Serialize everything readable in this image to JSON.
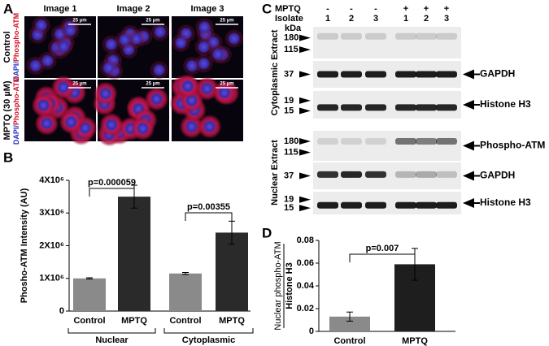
{
  "panel_a": {
    "label": "A",
    "columns": [
      "Image 1",
      "Image 2",
      "Image 3"
    ],
    "scale_bar": "25 µm",
    "rows": [
      {
        "name": "Control",
        "stain": [
          "DAPI/",
          "Phospho-ATM"
        ]
      },
      {
        "name": "MPTQ (30 µM)",
        "stain": [
          "DAPI/",
          "Phospho-ATM"
        ]
      }
    ]
  },
  "panel_c": {
    "label": "C",
    "row_headers": [
      "MPTQ",
      "Isolate"
    ],
    "mptq": [
      "-",
      "-",
      "-",
      "+",
      "+",
      "+"
    ],
    "isolate": [
      "1",
      "2",
      "3",
      "1",
      "2",
      "3"
    ],
    "unit": "kDa",
    "sections": [
      {
        "name": "Cytoplasmic Extract",
        "blots": [
          {
            "markers": [
              "180",
              "115"
            ]
          },
          {
            "markers": [
              "37"
            ],
            "target": "GAPDH"
          },
          {
            "markers": [
              "19",
              "15"
            ],
            "target": "Histone H3"
          }
        ]
      },
      {
        "name": "Nuclear Extract",
        "blots": [
          {
            "markers": [
              "180",
              "115"
            ],
            "target": "Phospho-ATM"
          },
          {
            "markers": [
              "37"
            ],
            "target": "GAPDH"
          },
          {
            "markers": [
              "19",
              "15"
            ],
            "target": "Histone H3"
          }
        ]
      }
    ]
  },
  "chart_data": [
    {
      "type": "bar",
      "label": "B",
      "ylabel": "Phosho-ATM Intensity (AU)",
      "categories": [
        "Control",
        "MPTQ",
        "Control",
        "MPTQ"
      ],
      "groups": [
        "Nuclear",
        "Cytoplasmic"
      ],
      "values": [
        1000000,
        3500000,
        1150000,
        2400000
      ],
      "errors": [
        20000,
        350000,
        30000,
        350000
      ],
      "colors": [
        "#8a8a8a",
        "#2a2a2a",
        "#8a8a8a",
        "#2a2a2a"
      ],
      "ylim": [
        0,
        4000000
      ],
      "yticks": [
        0,
        {
          "value": 1000000,
          "label": "1X10⁶"
        },
        {
          "value": 2000000,
          "label": "2X10⁶"
        },
        {
          "value": 3000000,
          "label": "3X10⁶"
        },
        {
          "value": 4000000,
          "label": "4X10⁶"
        }
      ],
      "annotations": [
        "p=0.000059",
        "p=0.00355"
      ]
    },
    {
      "type": "bar",
      "label": "D",
      "ylabel": [
        "Nuclear phospho-ATM",
        "Histone H3"
      ],
      "categories": [
        "Control",
        "MPTQ"
      ],
      "values": [
        0.013,
        0.059
      ],
      "errors": [
        0.004,
        0.014
      ],
      "colors": [
        "#8a8a8a",
        "#1e1e1e"
      ],
      "ylim": [
        0,
        0.08
      ],
      "yticks": [
        0,
        0.02,
        0.04,
        0.06,
        0.08
      ],
      "annotations": [
        "p=0.007"
      ]
    }
  ]
}
